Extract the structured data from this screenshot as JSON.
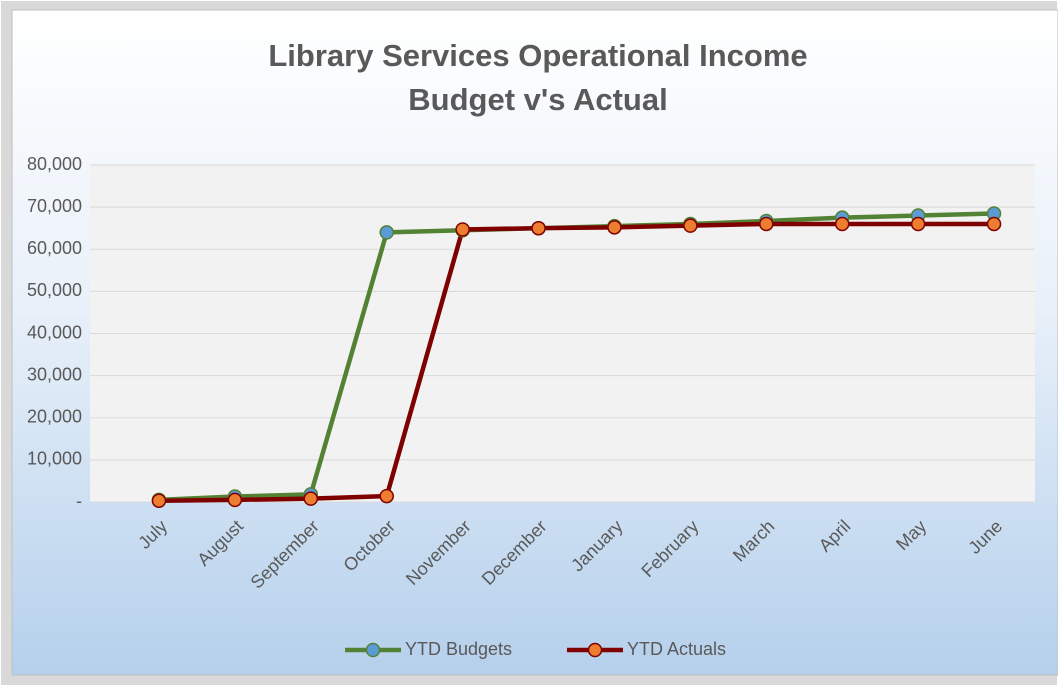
{
  "chart_data": {
    "type": "line",
    "title": "Library Services Operational Income",
    "subtitle": "Budget v's Actual",
    "categories": [
      "July",
      "August",
      "September",
      "October",
      "November",
      "December",
      "January",
      "February",
      "March",
      "April",
      "May",
      "June"
    ],
    "series": [
      {
        "name": "YTD Budgets",
        "color": "#548235",
        "marker_color": "#5b9bd5",
        "values": [
          500,
          1300,
          1800,
          64000,
          64500,
          65000,
          65500,
          66000,
          66700,
          67500,
          68000,
          68500
        ]
      },
      {
        "name": "YTD Actuals",
        "color": "#7f0000",
        "marker_color": "#ed7d31",
        "values": [
          300,
          500,
          800,
          1400,
          64700,
          65000,
          65200,
          65600,
          66000,
          66000,
          66000,
          66000
        ]
      }
    ],
    "ylim": [
      0,
      80000
    ],
    "yticks": [
      {
        "value": 0,
        "label": "-"
      },
      {
        "value": 10000,
        "label": "10,000"
      },
      {
        "value": 20000,
        "label": "20,000"
      },
      {
        "value": 30000,
        "label": "30,000"
      },
      {
        "value": 40000,
        "label": "40,000"
      },
      {
        "value": 50000,
        "label": "50,000"
      },
      {
        "value": 60000,
        "label": "60,000"
      },
      {
        "value": 70000,
        "label": "70,000"
      },
      {
        "value": 80000,
        "label": "80,000"
      }
    ],
    "grid": true,
    "legend": "bottom"
  }
}
